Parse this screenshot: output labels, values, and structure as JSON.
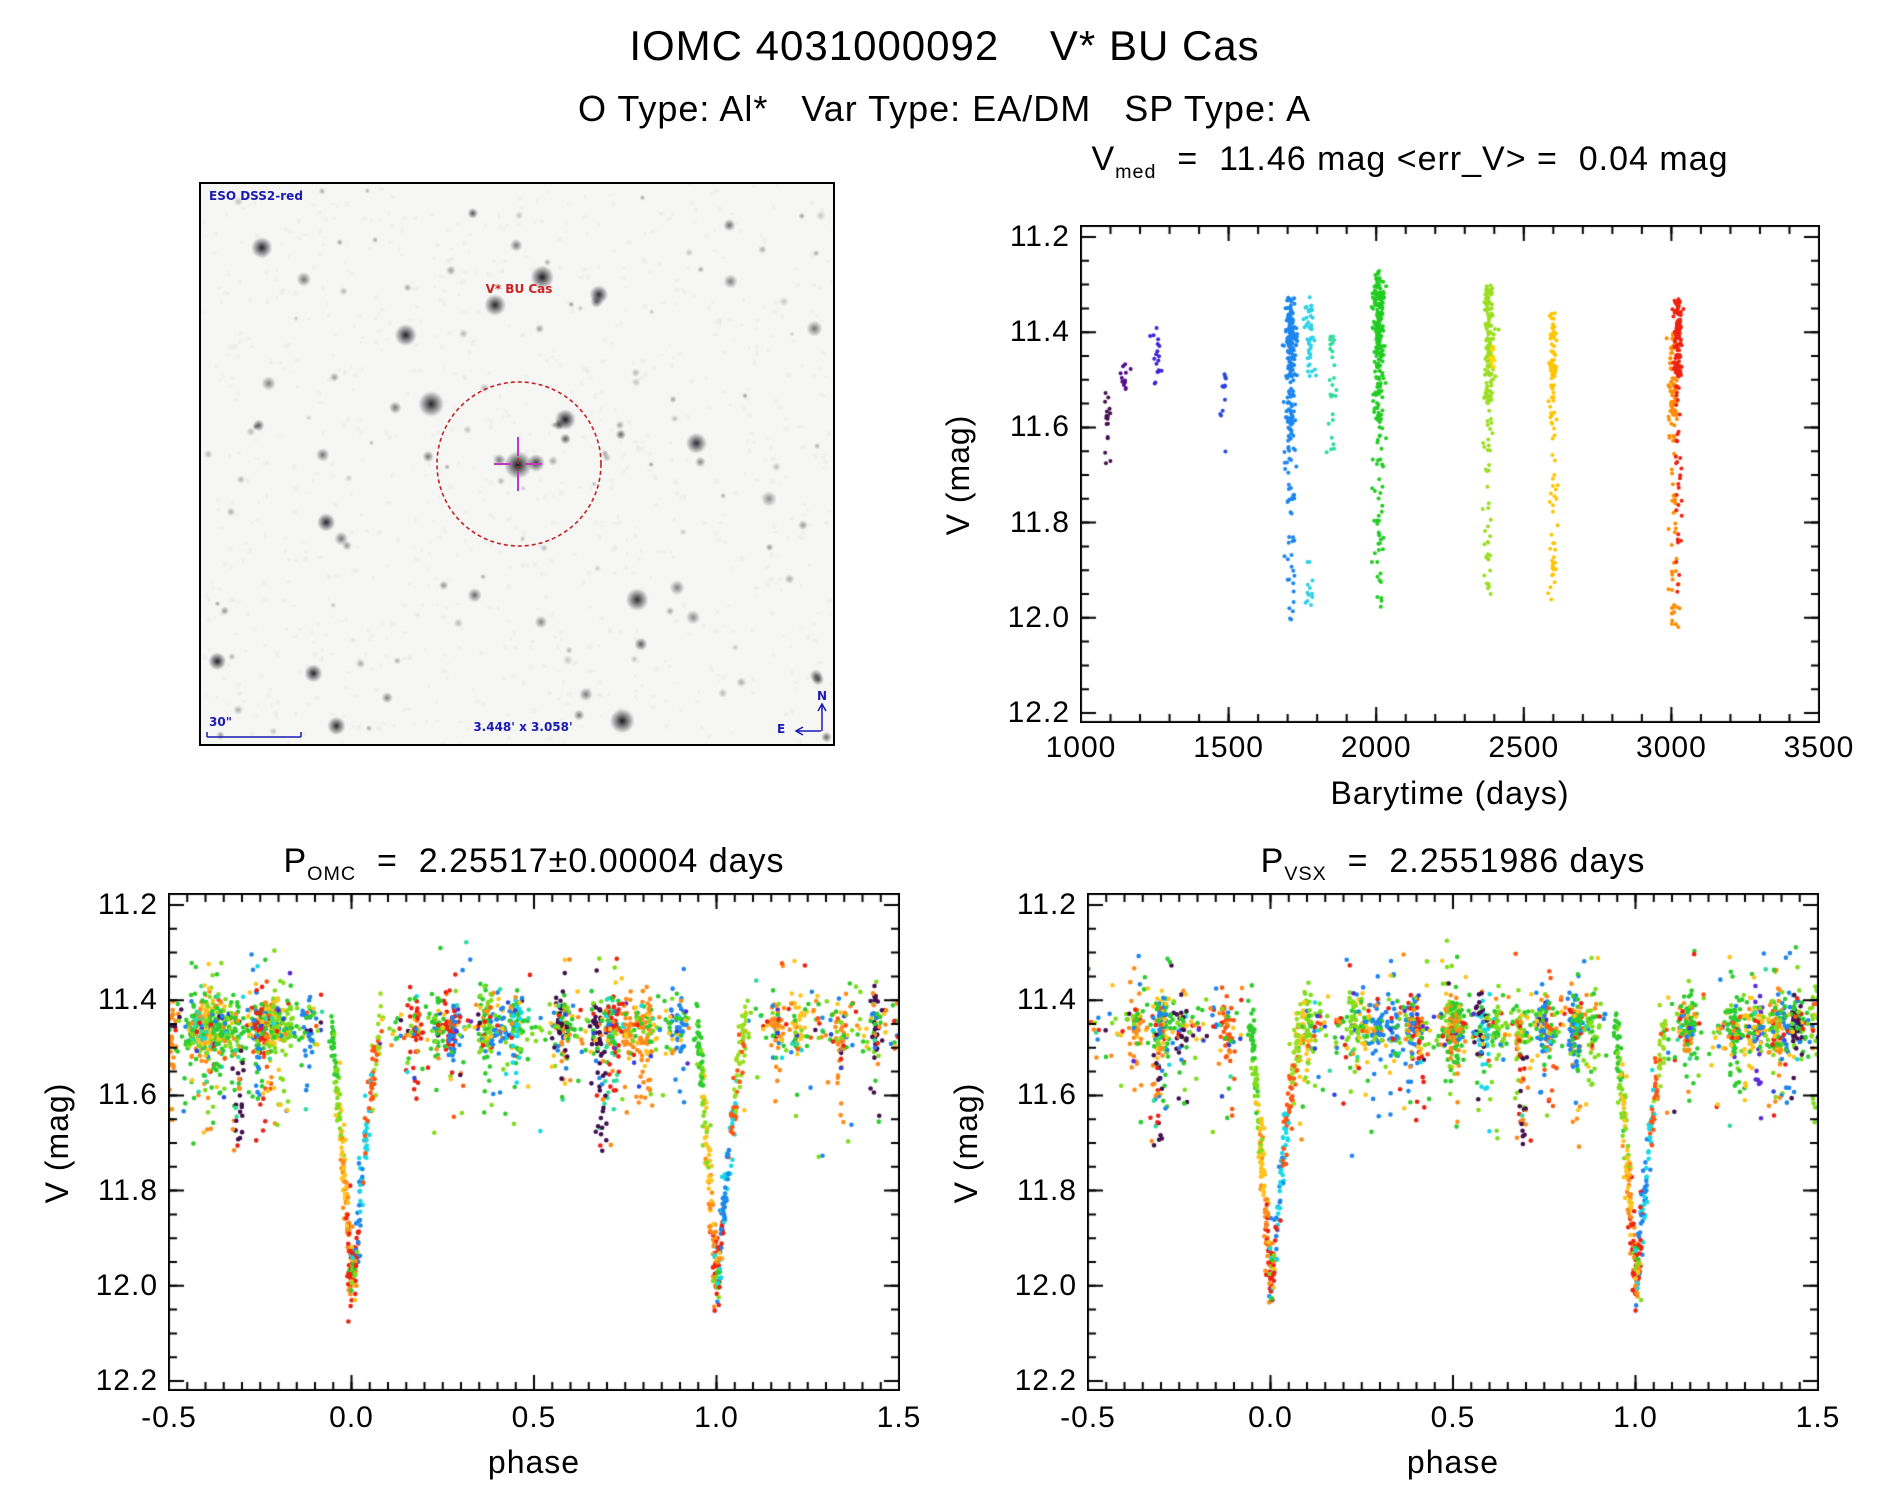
{
  "page": {
    "title": "IOMC 4031000092    V* BU Cas",
    "subtitle": "O Type: Al*   Var Type: EA/DM   SP Type: A"
  },
  "field_image": {
    "survey_label": "ESO DSS2-red",
    "star_label": "V* BU Cas",
    "scale_bar_label": "30\"",
    "size_label": "3.448' x 3.058'",
    "compass_north": "N",
    "compass_east": "E",
    "marker_circle_color": "#C22222",
    "crosshair_color": "#C238C2",
    "annotation_color": "#1A1AB4"
  },
  "chart_data": [
    {
      "type": "scatter",
      "title": "Vmed  =  11.46 mag <err_V> = 0.04 mag",
      "title_parts": {
        "base": "V",
        "sub": "med",
        "rest": "  =  11.46 mag <err_V> =  0.04 mag"
      },
      "xlabel": "Barytime (days)",
      "ylabel": "V (mag)",
      "xlim": [
        1000,
        3500
      ],
      "ylim": [
        12.2,
        11.2
      ],
      "x_major_ticks": [
        1000,
        1500,
        2000,
        2500,
        3000,
        3500
      ],
      "x_tick_labels": [
        "1000",
        "1500",
        "2000",
        "2500",
        "3000",
        "3500"
      ],
      "x_minor_step": 100,
      "y_major_ticks": [
        11.2,
        11.4,
        11.6,
        11.8,
        12.0,
        12.2
      ],
      "y_tick_labels": [
        "11.2",
        "11.4",
        "11.6",
        "11.8",
        "12.0",
        "12.2"
      ],
      "y_minor_step": 0.05,
      "grid": false,
      "legend": false,
      "clusters": [
        {
          "t": 1090,
          "color": "#42104E",
          "x_sigma_days": 8,
          "segments": [
            [
              11.53,
              11.61,
              12
            ],
            [
              11.62,
              11.68,
              5
            ]
          ]
        },
        {
          "t": 1150,
          "color": "#520D8A",
          "x_sigma_days": 7,
          "segments": [
            [
              11.46,
              11.52,
              13
            ]
          ]
        },
        {
          "t": 1255,
          "color": "#3E22D8",
          "x_sigma_days": 8,
          "segments": [
            [
              11.39,
              11.47,
              12
            ],
            [
              11.47,
              11.51,
              6
            ]
          ]
        },
        {
          "t": 1485,
          "color": "#2947E0",
          "x_sigma_days": 7,
          "segments": [
            [
              11.48,
              11.58,
              12
            ],
            [
              11.64,
              11.66,
              1
            ]
          ]
        },
        {
          "t": 1710,
          "color": "#1C86EE",
          "x_sigma_days": 9,
          "segments": [
            [
              11.33,
              11.5,
              150
            ],
            [
              11.5,
              11.66,
              55
            ],
            [
              11.66,
              12.0,
              40
            ]
          ]
        },
        {
          "t": 1775,
          "color": "#2FD0E8",
          "x_sigma_days": 8,
          "segments": [
            [
              11.33,
              11.5,
              45
            ],
            [
              11.88,
              11.99,
              12
            ]
          ]
        },
        {
          "t": 1850,
          "color": "#2EDD9B",
          "x_sigma_days": 8,
          "segments": [
            [
              11.4,
              11.55,
              18
            ],
            [
              11.55,
              11.66,
              8
            ]
          ]
        },
        {
          "t": 2010,
          "color": "#22CC22",
          "x_sigma_days": 10,
          "segments": [
            [
              11.27,
              11.45,
              150
            ],
            [
              11.45,
              11.6,
              60
            ],
            [
              11.6,
              11.98,
              45
            ]
          ]
        },
        {
          "t": 2380,
          "color": "#9ADE21",
          "x_sigma_days": 9,
          "segments": [
            [
              11.3,
              11.55,
              130
            ],
            [
              11.55,
              11.95,
              40
            ]
          ]
        },
        {
          "t": 2393,
          "color": "#FFD700",
          "x_sigma_days": 4,
          "segments": [
            [
              11.43,
              11.48,
              14
            ]
          ]
        },
        {
          "t": 2600,
          "color": "#FFC400",
          "x_sigma_days": 7,
          "segments": [
            [
              11.36,
              11.55,
              60
            ],
            [
              11.55,
              11.96,
              45
            ]
          ]
        },
        {
          "t": 3005,
          "color": "#FF8C00",
          "x_sigma_days": 8,
          "segments": [
            [
              11.4,
              11.6,
              70
            ],
            [
              11.6,
              12.02,
              45
            ]
          ]
        },
        {
          "t": 3022,
          "color": "#EE2211",
          "x_sigma_days": 7,
          "segments": [
            [
              11.33,
              11.5,
              120
            ],
            [
              11.5,
              11.95,
              35
            ]
          ]
        }
      ]
    },
    {
      "type": "scatter",
      "title": "POMC  =  2.25517±0.00004 days",
      "title_parts": {
        "base": "P",
        "sub": "OMC",
        "rest": "  =  2.25517±0.00004 days"
      },
      "xlabel": "phase",
      "ylabel": "V (mag)",
      "xlim": [
        -0.5,
        1.5
      ],
      "ylim": [
        12.2,
        11.2
      ],
      "x_major_ticks": [
        -0.5,
        0.0,
        0.5,
        1.0,
        1.5
      ],
      "x_tick_labels": [
        "-0.5",
        "0.0",
        "0.5",
        "1.0",
        "1.5"
      ],
      "x_minor_step": 0.05,
      "y_major_ticks": [
        11.2,
        11.4,
        11.6,
        11.8,
        12.0,
        12.2
      ],
      "y_tick_labels": [
        "11.2",
        "11.4",
        "11.6",
        "11.8",
        "12.0",
        "12.2"
      ],
      "y_minor_step": 0.05,
      "grid": false,
      "legend": false,
      "seed": 101,
      "model": {
        "baseline_mag": 11.455,
        "band_sigma": 0.033,
        "primary_minimum_mag": 12.02,
        "eclipse_half_width_ingress": 0.055,
        "eclipse_half_width_egress": 0.08,
        "eclipse_centers": [
          0.0,
          1.0
        ],
        "secondary_dip_phases": [
          -0.31,
          0.69
        ],
        "secondary_dip_depth_mag": 11.72,
        "n_stripes": 38,
        "stripe_points": 40,
        "background_points": 650,
        "eclipse_points": 270
      },
      "palette": [
        [
          "#2ECC2E",
          0.25
        ],
        [
          "#7FDD1C",
          0.17
        ],
        [
          "#FFC41E",
          0.15
        ],
        [
          "#FF8C1A",
          0.11
        ],
        [
          "#EE2211",
          0.08
        ],
        [
          "#FF5511",
          0.04
        ],
        [
          "#1E86EE",
          0.1
        ],
        [
          "#2947E0",
          0.02
        ],
        [
          "#17D9E8",
          0.02
        ],
        [
          "#2EDD9B",
          0.02
        ],
        [
          "#42104E",
          0.02
        ],
        [
          "#5B2BD8",
          0.02
        ]
      ],
      "eclipse_palette": [
        "#2ECC2E",
        "#7FDD1C",
        "#FFC41E",
        "#FF8C1A",
        "#EE2211",
        "#1E86EE",
        "#17D9E8",
        "#FF5511",
        "#9ADE21"
      ],
      "purple_stripe_phases": [
        0.57,
        1.44
      ]
    },
    {
      "type": "scatter",
      "title": "PVSX  =  2.2551986 days",
      "title_parts": {
        "base": "P",
        "sub": "VSX",
        "rest": "  =  2.2551986 days"
      },
      "xlabel": "phase",
      "ylabel": "V (mag)",
      "xlim": [
        -0.5,
        1.5
      ],
      "ylim": [
        12.2,
        11.2
      ],
      "x_major_ticks": [
        -0.5,
        0.0,
        0.5,
        1.0,
        1.5
      ],
      "x_tick_labels": [
        "-0.5",
        "0.0",
        "0.5",
        "1.0",
        "1.5"
      ],
      "x_minor_step": 0.05,
      "y_major_ticks": [
        11.2,
        11.4,
        11.6,
        11.8,
        12.0,
        12.2
      ],
      "y_tick_labels": [
        "11.2",
        "11.4",
        "11.6",
        "11.8",
        "12.0",
        "12.2"
      ],
      "y_minor_step": 0.05,
      "grid": false,
      "legend": false,
      "seed": 202,
      "model": {
        "baseline_mag": 11.455,
        "band_sigma": 0.033,
        "primary_minimum_mag": 12.02,
        "eclipse_half_width_ingress": 0.055,
        "eclipse_half_width_egress": 0.08,
        "eclipse_centers": [
          0.0,
          1.0
        ],
        "secondary_dip_phases": [
          -0.31,
          0.69
        ],
        "secondary_dip_depth_mag": 11.72,
        "n_stripes": 38,
        "stripe_points": 40,
        "background_points": 650,
        "eclipse_points": 270
      },
      "palette": [
        [
          "#2ECC2E",
          0.25
        ],
        [
          "#7FDD1C",
          0.17
        ],
        [
          "#FFC41E",
          0.15
        ],
        [
          "#FF8C1A",
          0.11
        ],
        [
          "#EE2211",
          0.08
        ],
        [
          "#FF5511",
          0.04
        ],
        [
          "#1E86EE",
          0.1
        ],
        [
          "#2947E0",
          0.02
        ],
        [
          "#17D9E8",
          0.02
        ],
        [
          "#2EDD9B",
          0.02
        ],
        [
          "#42104E",
          0.02
        ],
        [
          "#5B2BD8",
          0.02
        ]
      ],
      "eclipse_palette": [
        "#2ECC2E",
        "#7FDD1C",
        "#FFC41E",
        "#FF8C1A",
        "#EE2211",
        "#1E86EE",
        "#17D9E8",
        "#FF5511",
        "#9ADE21"
      ],
      "purple_stripe_phases": [
        0.57,
        1.44
      ]
    }
  ]
}
